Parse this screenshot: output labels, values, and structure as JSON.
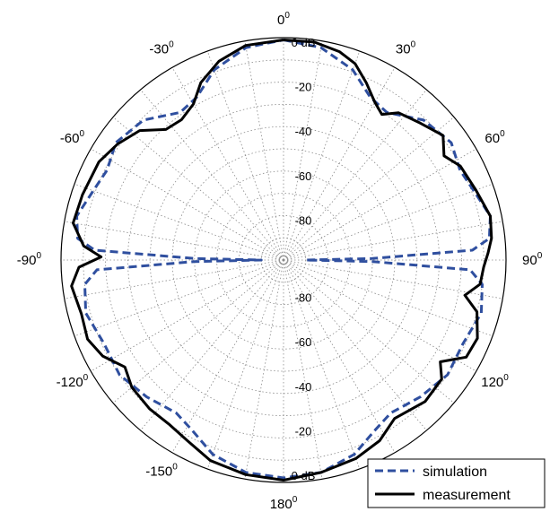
{
  "chart_data": {
    "type": "polar",
    "title": "",
    "angle_unit": "deg",
    "angle_tick_labels": [
      {
        "deg": 0,
        "text": "0"
      },
      {
        "deg": 30,
        "text": "30"
      },
      {
        "deg": 60,
        "text": "60"
      },
      {
        "deg": 90,
        "text": "90"
      },
      {
        "deg": 120,
        "text": "120"
      },
      {
        "deg": 150,
        "text": "150"
      },
      {
        "deg": 180,
        "text": "180"
      },
      {
        "deg": -150,
        "text": "-150"
      },
      {
        "deg": -120,
        "text": "-120"
      },
      {
        "deg": -90,
        "text": "-90"
      },
      {
        "deg": -60,
        "text": "-60"
      },
      {
        "deg": -30,
        "text": "-30"
      }
    ],
    "degree_symbol": "0",
    "radial_unit": "dB",
    "radial_range": [
      -100,
      0
    ],
    "radial_ticks_upper": [
      "0 dB",
      "-20",
      "-40",
      "-60",
      "-80"
    ],
    "radial_ticks_lower": [
      "0 dB",
      "-20",
      "-40",
      "-60",
      "-80"
    ],
    "grid": true,
    "legend_position": "bottom-right",
    "series": [
      {
        "name": "simulation",
        "style": "dashed",
        "color": "#2f4f9f",
        "points": [
          [
            0,
            -1
          ],
          [
            10,
            -3
          ],
          [
            20,
            -9
          ],
          [
            28,
            -17
          ],
          [
            35,
            -19
          ],
          [
            45,
            -11
          ],
          [
            55,
            -8
          ],
          [
            63,
            -11
          ],
          [
            70,
            -9
          ],
          [
            78,
            -5
          ],
          [
            84,
            -7
          ],
          [
            87,
            -15
          ],
          [
            89,
            -60
          ],
          [
            90,
            -90
          ],
          [
            91,
            -60
          ],
          [
            93,
            -16
          ],
          [
            97,
            -10
          ],
          [
            105,
            -8
          ],
          [
            115,
            -11
          ],
          [
            125,
            -10
          ],
          [
            135,
            -13
          ],
          [
            145,
            -16
          ],
          [
            152,
            -13
          ],
          [
            160,
            -7
          ],
          [
            170,
            -3
          ],
          [
            180,
            -2
          ],
          [
            -170,
            -3
          ],
          [
            -160,
            -7
          ],
          [
            -152,
            -13
          ],
          [
            -145,
            -16
          ],
          [
            -135,
            -13
          ],
          [
            -125,
            -10
          ],
          [
            -115,
            -11
          ],
          [
            -105,
            -8
          ],
          [
            -97,
            -10
          ],
          [
            -93,
            -16
          ],
          [
            -91,
            -60
          ],
          [
            -90,
            -90
          ],
          [
            -89,
            -60
          ],
          [
            -87,
            -15
          ],
          [
            -84,
            -7
          ],
          [
            -78,
            -5
          ],
          [
            -70,
            -9
          ],
          [
            -63,
            -11
          ],
          [
            -55,
            -8
          ],
          [
            -45,
            -11
          ],
          [
            -35,
            -19
          ],
          [
            -28,
            -17
          ],
          [
            -20,
            -9
          ],
          [
            -10,
            -3
          ],
          [
            0,
            -1
          ]
        ]
      },
      {
        "name": "measurement",
        "style": "solid",
        "color": "#000000",
        "points": [
          [
            0,
            -1
          ],
          [
            8,
            -1
          ],
          [
            15,
            -3
          ],
          [
            20,
            -6
          ],
          [
            25,
            -12
          ],
          [
            30,
            -18
          ],
          [
            34,
            -21
          ],
          [
            38,
            -16
          ],
          [
            45,
            -13
          ],
          [
            52,
            -9
          ],
          [
            57,
            -14
          ],
          [
            62,
            -10
          ],
          [
            70,
            -8
          ],
          [
            78,
            -5
          ],
          [
            84,
            -6
          ],
          [
            88,
            -8
          ],
          [
            92,
            -10
          ],
          [
            97,
            -11
          ],
          [
            101,
            -17
          ],
          [
            105,
            -10
          ],
          [
            112,
            -6
          ],
          [
            118,
            -7
          ],
          [
            123,
            -16
          ],
          [
            127,
            -11
          ],
          [
            135,
            -10
          ],
          [
            145,
            -13
          ],
          [
            152,
            -8
          ],
          [
            160,
            -5
          ],
          [
            170,
            -3
          ],
          [
            180,
            -1
          ],
          [
            -170,
            -2
          ],
          [
            -160,
            -4
          ],
          [
            -152,
            -8
          ],
          [
            -145,
            -10
          ],
          [
            -138,
            -10
          ],
          [
            -130,
            -11
          ],
          [
            -124,
            -14
          ],
          [
            -118,
            -8
          ],
          [
            -112,
            -5
          ],
          [
            -105,
            -6
          ],
          [
            -97,
            -4
          ],
          [
            -92,
            -8
          ],
          [
            -89,
            -18
          ],
          [
            -86,
            -10
          ],
          [
            -80,
            -4
          ],
          [
            -72,
            -5
          ],
          [
            -62,
            -6
          ],
          [
            -55,
            -9
          ],
          [
            -48,
            -13
          ],
          [
            -42,
            -21
          ],
          [
            -36,
            -22
          ],
          [
            -30,
            -19
          ],
          [
            -25,
            -12
          ],
          [
            -18,
            -6
          ],
          [
            -10,
            -2
          ],
          [
            0,
            -1
          ]
        ]
      }
    ]
  }
}
